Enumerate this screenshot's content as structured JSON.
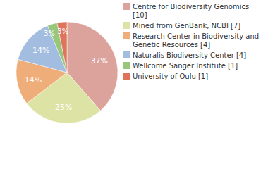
{
  "chart_data": {
    "type": "pie",
    "categories": [
      "Centre for Biodiversity Genomics [10]",
      "Mined from GenBank, NCBI [7]",
      "Research Center in Biodiversity and Genetic Resources [4]",
      "Naturalis Biodiversity Center [4]",
      "Wellcome Sanger Institute [1]",
      "University of Oulu [1]"
    ],
    "values": [
      37,
      25,
      14,
      14,
      3,
      3
    ],
    "value_labels": [
      "37%",
      "25%",
      "14%",
      "14%",
      "3%",
      "3%"
    ],
    "colors": [
      "#dca39d",
      "#dde3a4",
      "#efad7a",
      "#a2bde0",
      "#98c67a",
      "#df745c"
    ],
    "data_labels": true,
    "legend": "right"
  }
}
